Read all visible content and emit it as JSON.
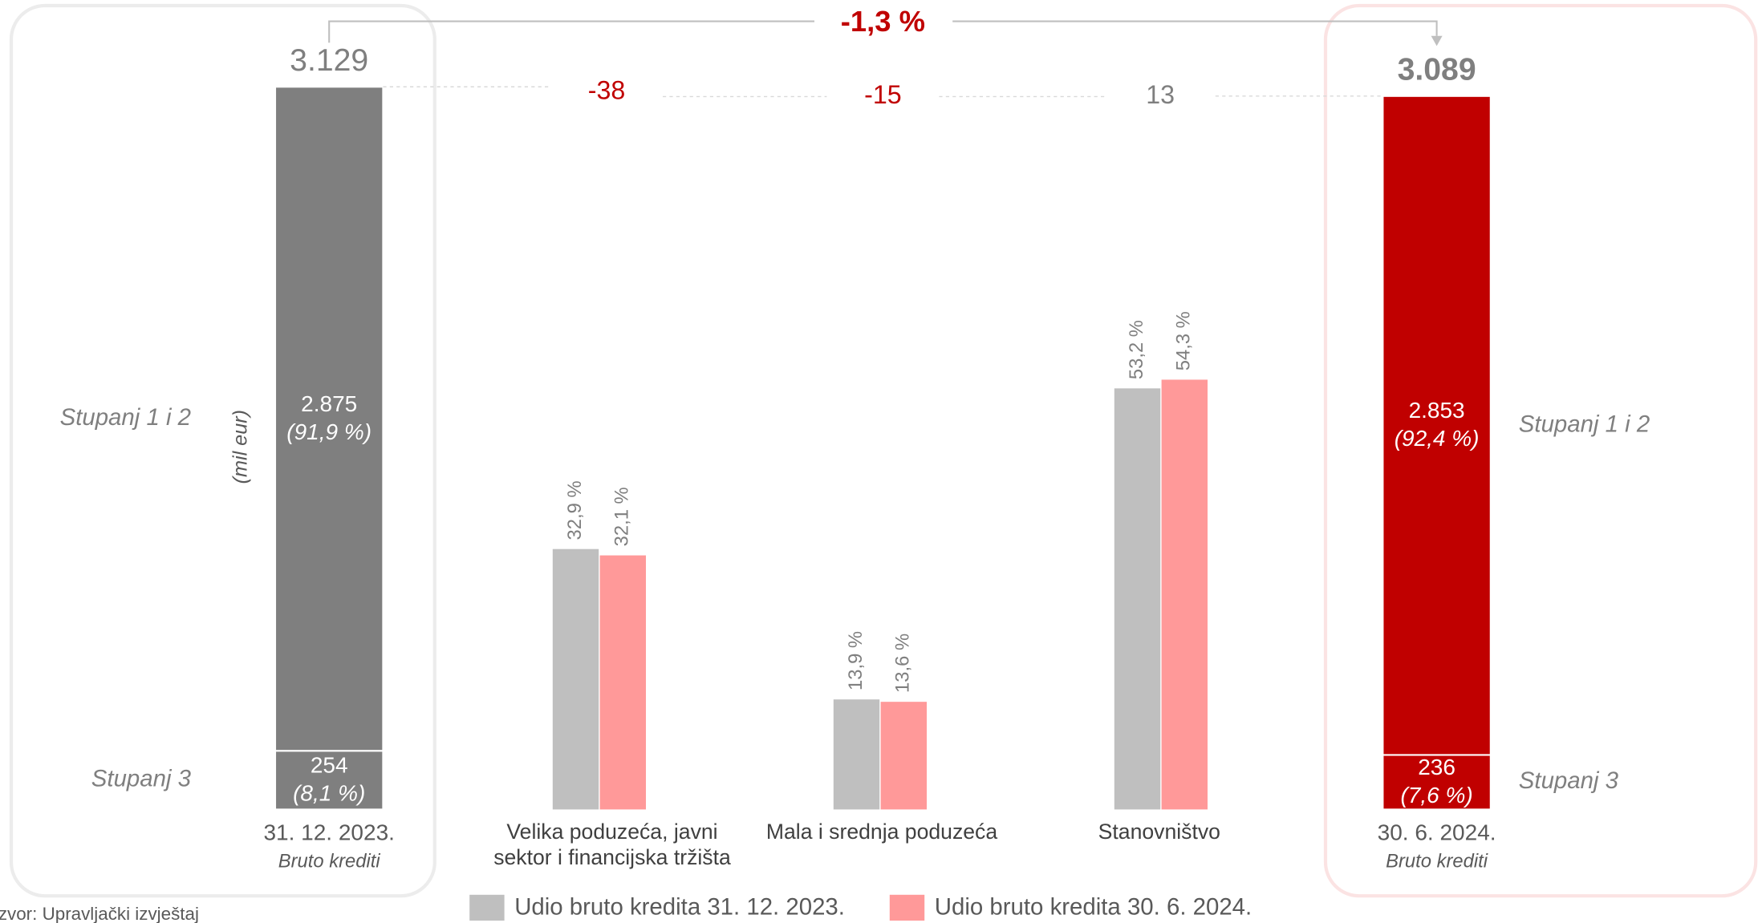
{
  "chart_data": {
    "type": "bar",
    "change": {
      "value": -1.3,
      "label": "-1,3 %"
    },
    "axis_label": "(mil eur)",
    "segment_names": [
      "Stupanj 1 i 2",
      "Stupanj 3"
    ],
    "ylim": [
      0,
      3500
    ],
    "totals": [
      {
        "date": "31. 12. 2023.",
        "subtitle": "Bruto krediti",
        "value": 3129,
        "label": "3.129",
        "color": "#7f7f7f",
        "segments": [
          {
            "value": 2875,
            "label": "2.875",
            "share": 91.9,
            "share_label": "(91,9 %)"
          },
          {
            "value": 254,
            "label": "254",
            "share": 8.1,
            "share_label": "(8,1 %)"
          }
        ]
      },
      {
        "date": "30. 6. 2024.",
        "subtitle": "Bruto krediti",
        "value": 3089,
        "label": "3.089",
        "color": "#c00000",
        "segments": [
          {
            "value": 2853,
            "label": "2.853",
            "share": 92.4,
            "share_label": "(92,4 %)"
          },
          {
            "value": 236,
            "label": "236",
            "share": 7.6,
            "share_label": "(7,6 %)"
          }
        ]
      }
    ],
    "bridge": [
      -38,
      -15,
      13
    ],
    "share_chart": {
      "categories": [
        "Velika poduzeća, javni sektor i financijska tržišta",
        "Mala i srednja poduzeća",
        "Stanovništvo"
      ],
      "ylim": [
        0,
        100
      ],
      "series": [
        {
          "name": "Udio bruto kredita 31. 12. 2023.",
          "color": "#bfbfbf",
          "values": [
            32.9,
            13.9,
            53.2
          ],
          "value_labels": [
            "32,9 %",
            "13,9 %",
            "53,2 %"
          ]
        },
        {
          "name": "Udio bruto kredita 30. 6. 2024.",
          "color": "#ff9999",
          "values": [
            32.1,
            13.6,
            54.3
          ],
          "value_labels": [
            "32,1 %",
            "13,6 %",
            "54,3 %"
          ]
        }
      ]
    },
    "source": "Izvor: Upravljački izvještaj"
  }
}
